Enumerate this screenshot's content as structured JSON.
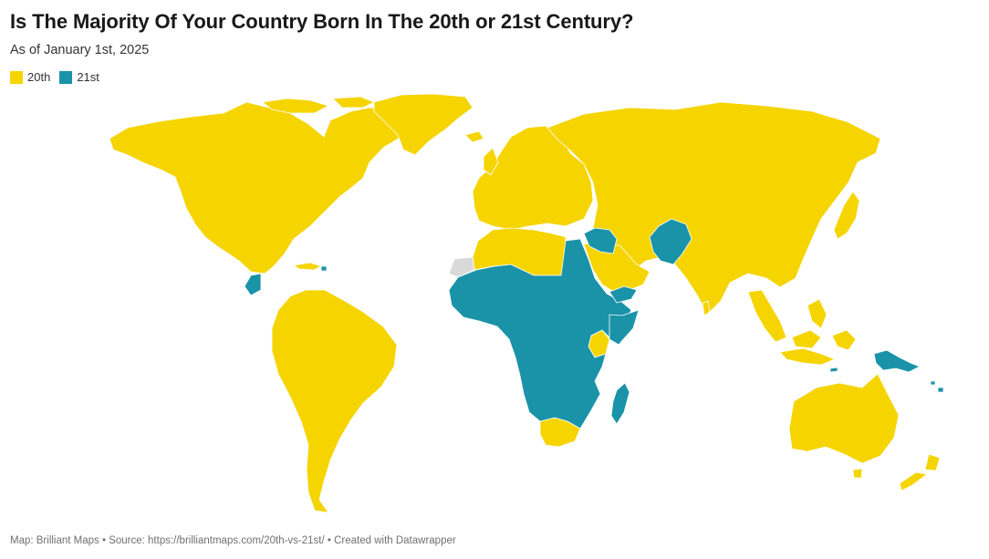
{
  "title": "Is The Majority Of Your Country Born In The 20th or 21st Century?",
  "subtitle": "As of January 1st, 2025",
  "legend": [
    {
      "label": "20th",
      "color": "#f5d400"
    },
    {
      "label": "21st",
      "color": "#1a93a8"
    }
  ],
  "footer": {
    "text": "Map: Brilliant Maps • Source: https://brilliantmaps.com/20th-vs-21st/ • Created with Datawrapper"
  },
  "colors": {
    "no_data": "#d9d9d9",
    "border": "#ffffff"
  },
  "map_categories": {
    "21st": [
      "Guatemala",
      "Haiti",
      "Egypt",
      "Iraq",
      "Syria",
      "Jordan",
      "Pakistan",
      "Afghanistan",
      "Yemen",
      "Sub-Saharan Africa (most countries)",
      "Madagascar",
      "Papua New Guinea",
      "Solomon Islands",
      "Timor-Leste"
    ],
    "20th": [
      "North America",
      "South America",
      "Europe",
      "Russia",
      "China",
      "India",
      "Southeast Asia",
      "Australia",
      "New Zealand",
      "North Africa (Morocco, Algeria, Libya, Tunisia)",
      "Saudi Arabia",
      "Iran",
      "Kenya",
      "South Africa",
      "Botswana",
      "Eswatini"
    ]
  }
}
